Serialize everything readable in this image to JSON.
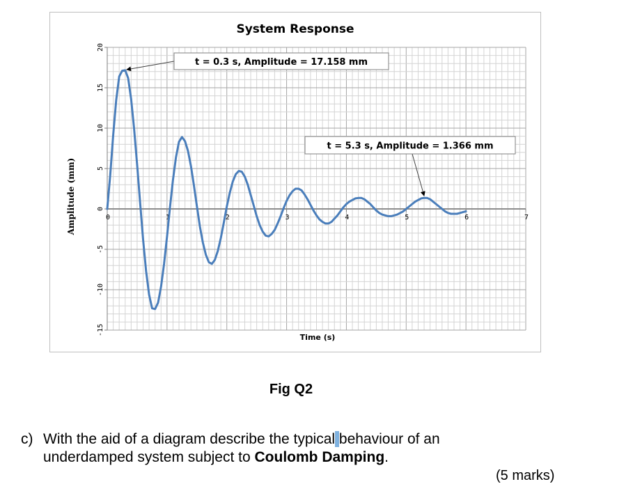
{
  "chart_data": {
    "type": "line",
    "title": "System Response",
    "xlabel": "Time (s)",
    "ylabel": "Amplitude (mm)",
    "xlim": [
      0,
      7
    ],
    "ylim": [
      -15,
      20
    ],
    "x_ticks": [
      "0",
      "1",
      "2",
      "3",
      "4",
      "5",
      "6",
      "7"
    ],
    "y_ticks": [
      "20",
      "15",
      "10",
      "5",
      "0",
      "-5",
      "-10",
      "-15"
    ],
    "grid": true,
    "series_color": "#4a7ebb",
    "series": [
      {
        "x": [
          0.0,
          0.05,
          0.1,
          0.15,
          0.2,
          0.25,
          0.3,
          0.35,
          0.4,
          0.45,
          0.5,
          0.55,
          0.6,
          0.65,
          0.7,
          0.75,
          0.8,
          0.85,
          0.9,
          0.95,
          1.0,
          1.05,
          1.1,
          1.15,
          1.2,
          1.25,
          1.3,
          1.35,
          1.4,
          1.45,
          1.5,
          1.55,
          1.6,
          1.65,
          1.7,
          1.75,
          1.8,
          1.85,
          1.9,
          1.95,
          2.0,
          2.05,
          2.1,
          2.15,
          2.2,
          2.25,
          2.3,
          2.35,
          2.4,
          2.45,
          2.5,
          2.55,
          2.6,
          2.65,
          2.7,
          2.75,
          2.8,
          2.85,
          2.9,
          2.95,
          3.0,
          3.05,
          3.1,
          3.15,
          3.2,
          3.25,
          3.3,
          3.35,
          3.4,
          3.45,
          3.5,
          3.55,
          3.6,
          3.65,
          3.7,
          3.75,
          3.8,
          3.85,
          3.9,
          3.95,
          4.0,
          4.05,
          4.1,
          4.15,
          4.2,
          4.25,
          4.3,
          4.35,
          4.4,
          4.45,
          4.5,
          4.55,
          4.6,
          4.65,
          4.7,
          4.75,
          4.8,
          4.85,
          4.9,
          4.95,
          5.0,
          5.05,
          5.1,
          5.15,
          5.2,
          5.25,
          5.3,
          5.35,
          5.4,
          5.45,
          5.5,
          5.55,
          5.6,
          5.65,
          5.7,
          5.75,
          5.8,
          5.85,
          5.9,
          5.95,
          6.0
        ],
        "y": [
          0.0,
          4.2,
          9.2,
          13.5,
          16.4,
          17.1,
          17.16,
          16.2,
          13.6,
          9.9,
          5.5,
          0.8,
          -3.8,
          -7.7,
          -10.6,
          -12.3,
          -12.4,
          -11.6,
          -9.6,
          -6.8,
          -3.4,
          0.2,
          3.6,
          6.4,
          8.3,
          8.9,
          8.4,
          7.2,
          5.3,
          2.9,
          0.3,
          -2.2,
          -4.2,
          -5.7,
          -6.6,
          -6.8,
          -6.3,
          -5.2,
          -3.6,
          -1.7,
          0.3,
          2.0,
          3.4,
          4.3,
          4.7,
          4.6,
          4.0,
          3.0,
          1.7,
          0.4,
          -0.9,
          -2.0,
          -2.8,
          -3.3,
          -3.4,
          -3.1,
          -2.6,
          -1.8,
          -0.9,
          0.1,
          1.0,
          1.7,
          2.2,
          2.5,
          2.5,
          2.3,
          1.8,
          1.2,
          0.5,
          -0.2,
          -0.8,
          -1.3,
          -1.6,
          -1.8,
          -1.8,
          -1.6,
          -1.2,
          -0.8,
          -0.3,
          0.2,
          0.6,
          0.9,
          1.1,
          1.3,
          1.35,
          1.35,
          1.2,
          0.9,
          0.6,
          0.2,
          -0.2,
          -0.5,
          -0.7,
          -0.8,
          -0.9,
          -0.9,
          -0.8,
          -0.7,
          -0.5,
          -0.3,
          0.0,
          0.3,
          0.6,
          0.9,
          1.1,
          1.3,
          1.366,
          1.35,
          1.2,
          0.9,
          0.6,
          0.3,
          0.0,
          -0.3,
          -0.5,
          -0.6,
          -0.6,
          -0.6,
          -0.5,
          -0.4,
          -0.3
        ]
      }
    ],
    "annotations": [
      {
        "text": "t = 0.3 s, Amplitude = 17.158 mm",
        "x": 0.3,
        "y": 17.158
      },
      {
        "text": "t = 5.3 s, Amplitude = 1.366 mm",
        "x": 5.3,
        "y": 1.366
      }
    ]
  },
  "caption": "Fig Q2",
  "question": {
    "label": "c)",
    "part1": "With the aid of a diagram describe the typical",
    "highlight": " ",
    "part2": "behaviour of an",
    "part3": "underdamped system subject to ",
    "bold": "Coulomb Damping",
    "end": ".",
    "marks_partial": "(5 marks)"
  }
}
